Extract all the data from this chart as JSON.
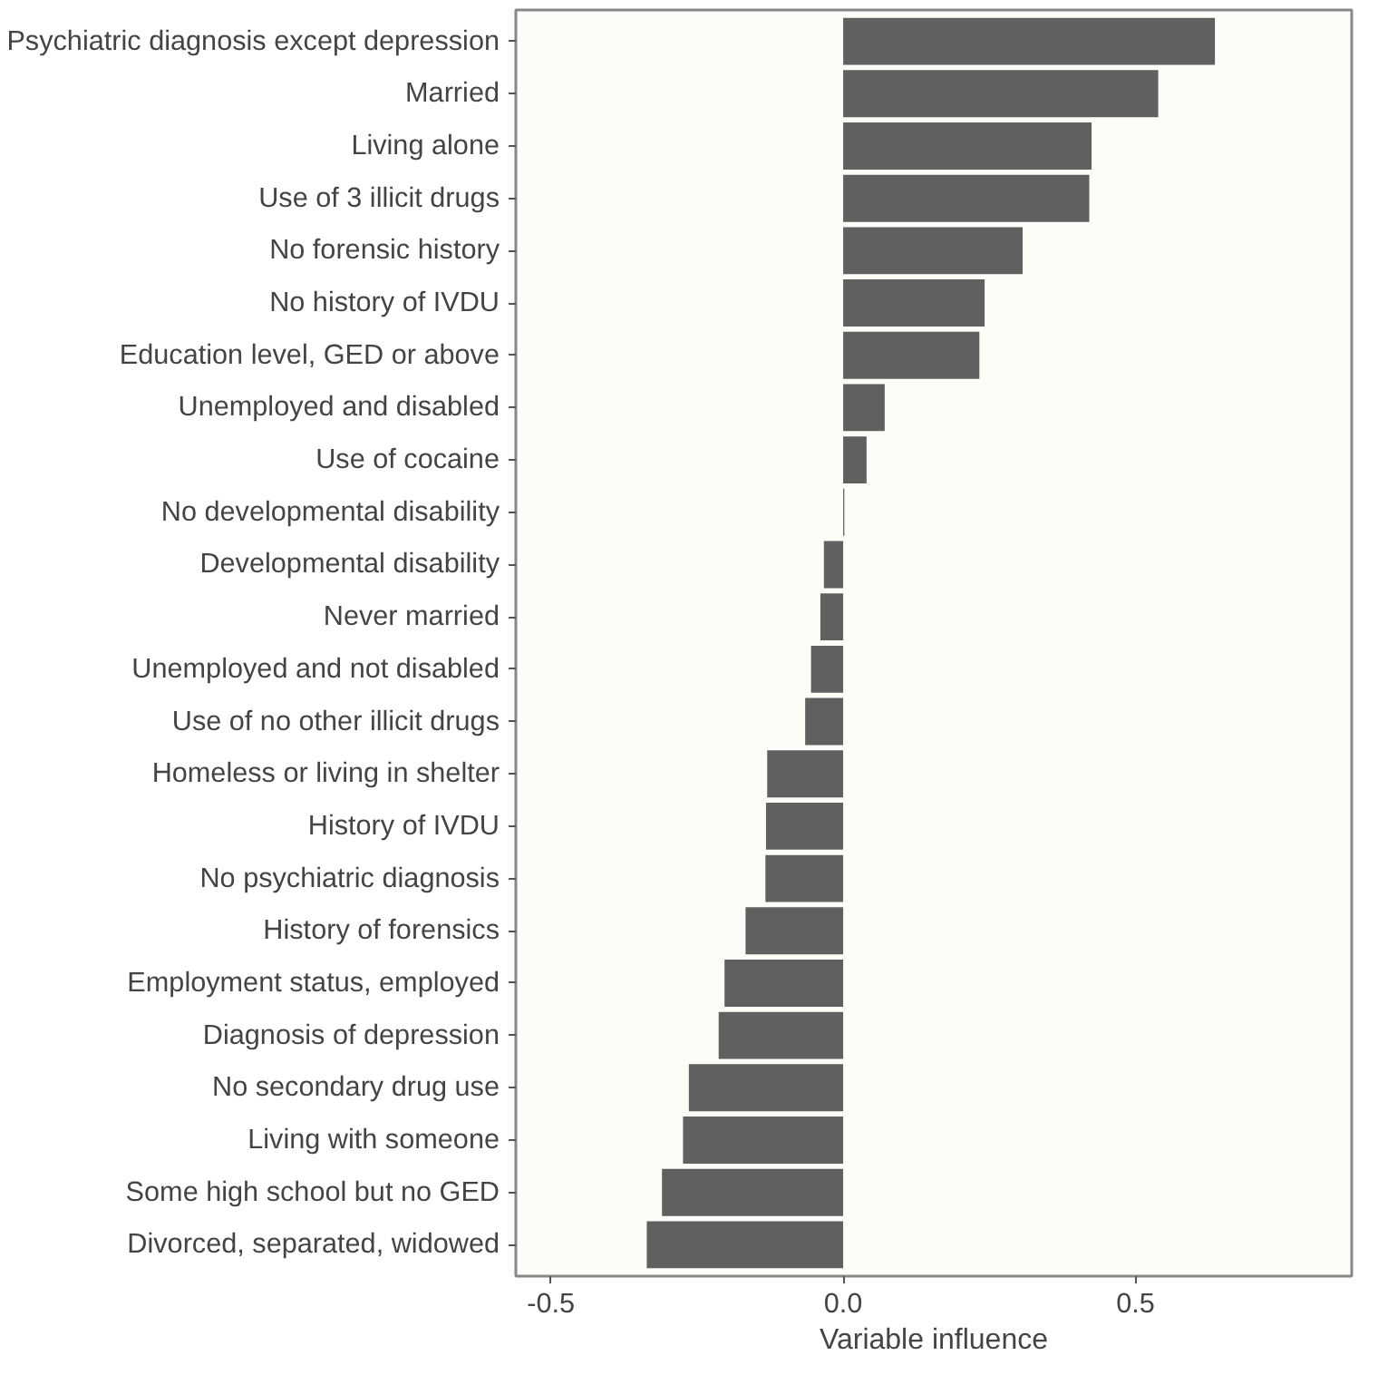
{
  "chart_data": {
    "type": "bar",
    "orientation": "horizontal",
    "xlabel": "Variable influence",
    "categories": [
      "Psychiatric diagnosis except depression",
      "Married",
      "Living alone",
      "Use of 3 illicit drugs",
      "No forensic history",
      "No history of IVDU",
      "Education level, GED or above",
      "Unemployed and disabled",
      "Use of cocaine",
      "No developmental disability",
      "Developmental disability",
      "Never married",
      "Unemployed and not disabled",
      "Use of no other illicit drugs",
      "Homeless or living in shelter",
      "History of IVDU",
      "No psychiatric diagnosis",
      "History of forensics",
      "Employment status, employed",
      "Diagnosis of depression",
      "No secondary drug use",
      "Living with someone",
      "Some high school but no GED",
      "Divorced, separated, widowed"
    ],
    "values": [
      0.636,
      0.539,
      0.425,
      0.421,
      0.307,
      0.242,
      0.233,
      0.071,
      0.04,
      0.002,
      -0.033,
      -0.039,
      -0.055,
      -0.065,
      -0.13,
      -0.132,
      -0.133,
      -0.167,
      -0.203,
      -0.213,
      -0.264,
      -0.274,
      -0.31,
      -0.336
    ],
    "color": "#606060",
    "xlim": [
      -0.56,
      0.87
    ],
    "xticks": [
      {
        "value": -0.5,
        "label": "-0.5"
      },
      {
        "value": 0,
        "label": "0.0"
      },
      {
        "value": 0.5,
        "label": "0.5"
      }
    ],
    "grid": false
  }
}
